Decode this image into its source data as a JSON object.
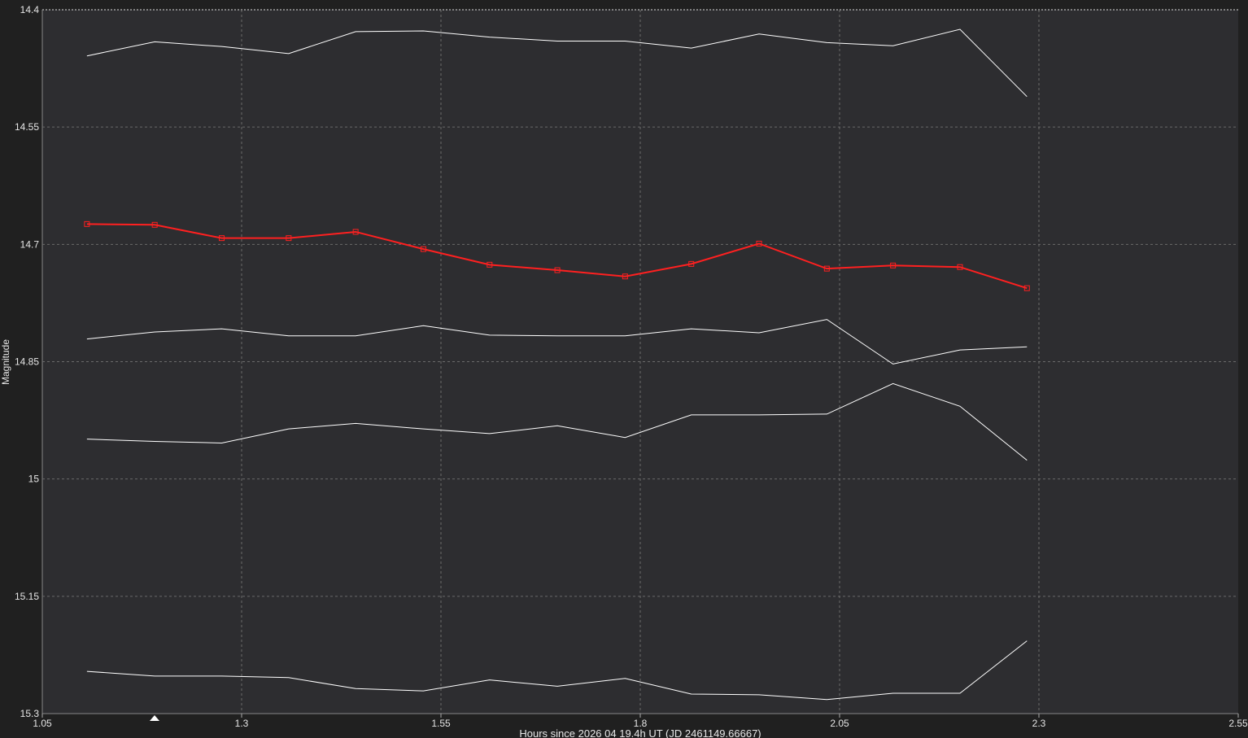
{
  "chart_data": {
    "type": "line",
    "y_label": "Magnitude",
    "x_label": "Hours since 2026 04 19.4h UT (JD 2461149.66667)",
    "x": [
      1.106,
      1.191,
      1.275,
      1.359,
      1.443,
      1.528,
      1.611,
      1.696,
      1.781,
      1.864,
      1.949,
      2.034,
      2.117,
      2.201,
      2.285
    ],
    "series": [
      {
        "color": "#ff2020",
        "markers": true,
        "values": [
          14.674,
          14.675,
          14.692,
          14.692,
          14.684,
          14.706,
          14.726,
          14.733,
          14.741,
          14.725,
          14.699,
          14.731,
          14.727,
          14.729,
          14.756
        ]
      },
      {
        "color": "#ffffff",
        "markers": false,
        "values": [
          14.459,
          14.441,
          14.447,
          14.456,
          14.428,
          14.427,
          14.435,
          14.44,
          14.44,
          14.449,
          14.431,
          14.442,
          14.446,
          14.425,
          14.511
        ]
      },
      {
        "color": "#ffffff",
        "markers": false,
        "values": [
          14.821,
          14.812,
          14.808,
          14.817,
          14.817,
          14.804,
          14.816,
          14.817,
          14.817,
          14.808,
          14.813,
          14.796,
          14.853,
          14.835,
          14.831
        ]
      },
      {
        "color": "#ffffff",
        "markers": false,
        "values": [
          14.949,
          14.952,
          14.954,
          14.936,
          14.929,
          14.936,
          14.942,
          14.932,
          14.947,
          14.918,
          14.918,
          14.917,
          14.878,
          14.907,
          14.976
        ]
      },
      {
        "color": "#ffffff",
        "markers": false,
        "values": [
          15.246,
          15.252,
          15.252,
          15.254,
          15.268,
          15.271,
          15.257,
          15.265,
          15.255,
          15.275,
          15.276,
          15.282,
          15.274,
          15.274,
          15.207
        ]
      }
    ],
    "xlim": [
      1.05,
      2.55
    ],
    "xticks": [
      1.05,
      1.3,
      1.55,
      1.8,
      2.05,
      2.3,
      2.55
    ],
    "ylim": [
      14.4,
      15.3
    ],
    "yticks": [
      14.4,
      14.55,
      14.7,
      14.85,
      15,
      15.15,
      15.3
    ],
    "y_inverted": true,
    "grid": true
  }
}
